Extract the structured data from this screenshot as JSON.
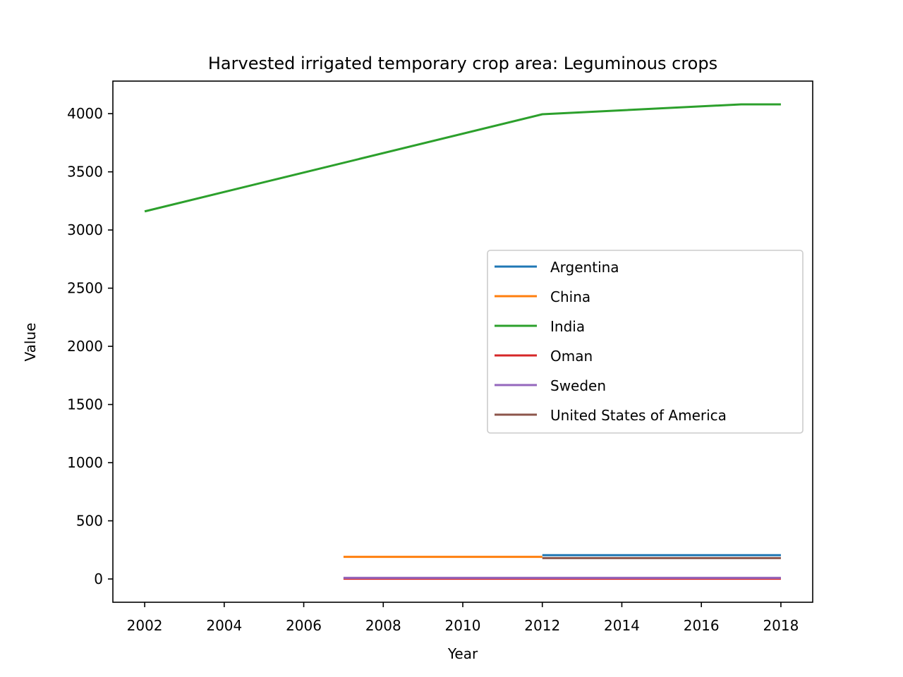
{
  "chart_data": {
    "type": "line",
    "title": "Harvested irrigated temporary crop area: Leguminous crops",
    "xlabel": "Year",
    "ylabel": "Value",
    "xlim": [
      2001.2,
      2018.8
    ],
    "ylim": [
      -200,
      4280
    ],
    "xticks": [
      2002,
      2004,
      2006,
      2008,
      2010,
      2012,
      2014,
      2016,
      2018
    ],
    "yticks": [
      0,
      500,
      1000,
      1500,
      2000,
      2500,
      3000,
      3500,
      4000
    ],
    "grid": false,
    "legend_position": "center-right",
    "series": [
      {
        "name": "Argentina",
        "color": "#1f77b4",
        "x": [
          2012,
          2018
        ],
        "y": [
          205,
          205
        ]
      },
      {
        "name": "China",
        "color": "#ff7f0e",
        "x": [
          2007,
          2012
        ],
        "y": [
          190,
          190
        ]
      },
      {
        "name": "India",
        "color": "#2ca02c",
        "x": [
          2002,
          2012,
          2017,
          2018
        ],
        "y": [
          3160,
          3995,
          4080,
          4080
        ]
      },
      {
        "name": "Oman",
        "color": "#d62728",
        "x": [
          2007,
          2018
        ],
        "y": [
          2,
          2
        ]
      },
      {
        "name": "Sweden",
        "color": "#9467bd",
        "x": [
          2007,
          2018
        ],
        "y": [
          10,
          10
        ]
      },
      {
        "name": "United States of America",
        "color": "#8c564b",
        "x": [
          2012,
          2018
        ],
        "y": [
          180,
          180
        ]
      }
    ]
  }
}
